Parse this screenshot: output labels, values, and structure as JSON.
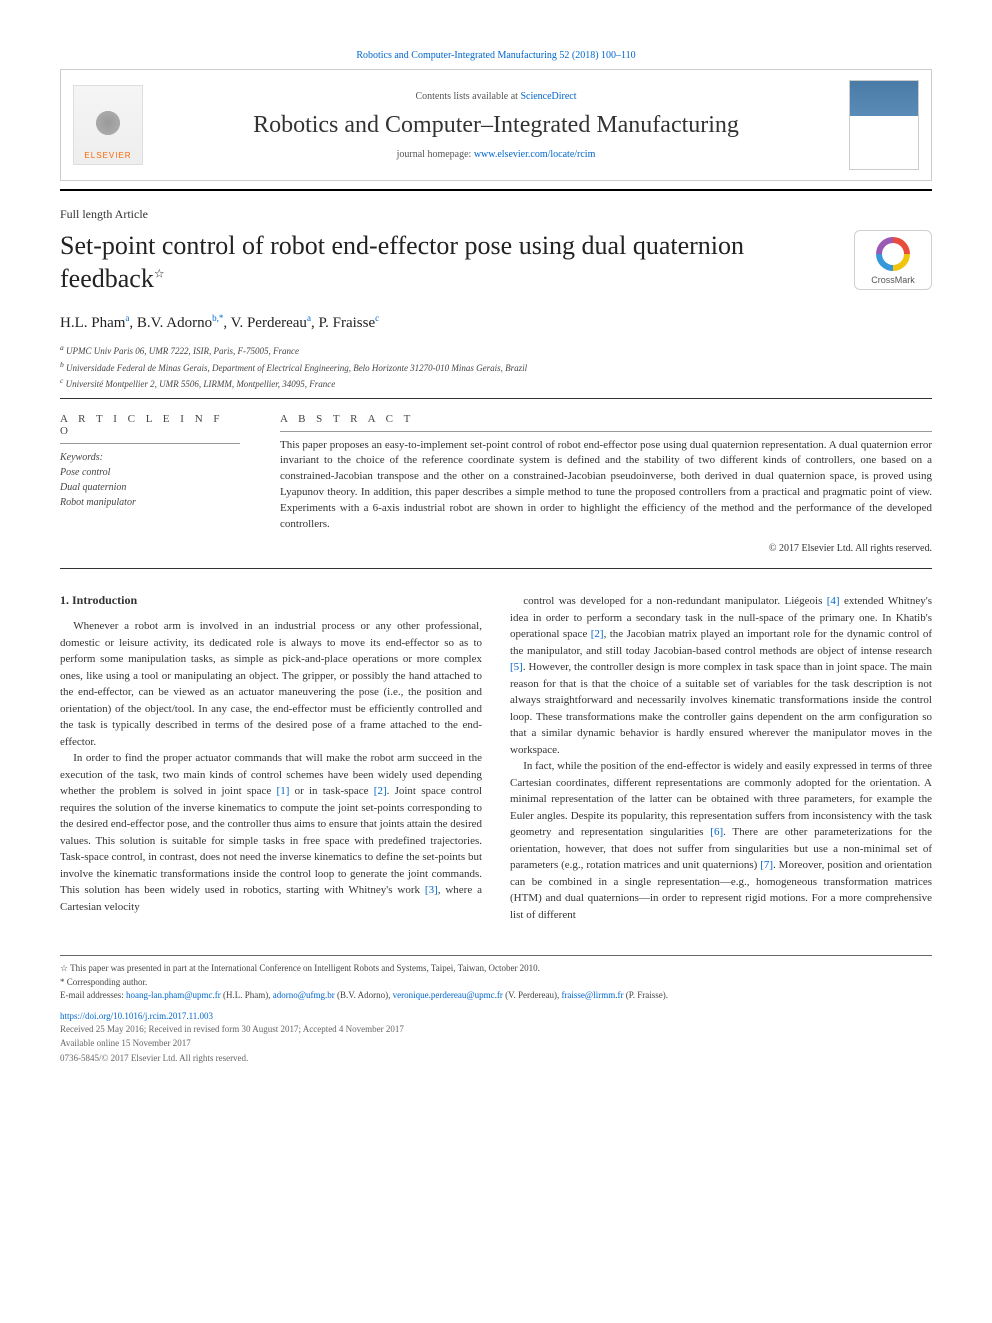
{
  "top_link": "Robotics and Computer-Integrated Manufacturing 52 (2018) 100–110",
  "header": {
    "contents_prefix": "Contents lists available at ",
    "contents_link": "ScienceDirect",
    "journal_name": "Robotics and Computer–Integrated Manufacturing",
    "homepage_prefix": "journal homepage: ",
    "homepage_url": "www.elsevier.com/locate/rcim",
    "elsevier_brand": "ELSEVIER",
    "crossmark_label": "CrossMark"
  },
  "article_type": "Full length Article",
  "title": "Set-point control of robot end-effector pose using dual quaternion feedback",
  "title_star": "☆",
  "authors_html": "H.L. Pham",
  "authors": [
    {
      "name": "H.L. Pham",
      "sup": "a"
    },
    {
      "name": "B.V. Adorno",
      "sup": "b,*"
    },
    {
      "name": "V. Perdereau",
      "sup": "a"
    },
    {
      "name": "P. Fraisse",
      "sup": "c"
    }
  ],
  "affiliations": [
    "UPMC Univ Paris 06, UMR 7222, ISIR, Paris, F-75005, France",
    "Universidade Federal de Minas Gerais, Department of Electrical Engineering, Belo Horizonte 31270-010 Minas Gerais, Brazil",
    "Université Montpellier 2, UMR 5506, LIRMM, Montpellier, 34095, France"
  ],
  "affil_markers": [
    "a",
    "b",
    "c"
  ],
  "info_heads": {
    "left": "A R T I C L E   I N F O",
    "right": "A B S T R A C T"
  },
  "keywords_label": "Keywords:",
  "keywords": [
    "Pose control",
    "Dual quaternion",
    "Robot manipulator"
  ],
  "abstract": "This paper proposes an easy-to-implement set-point control of robot end-effector pose using dual quaternion representation. A dual quaternion error invariant to the choice of the reference coordinate system is defined and the stability of two different kinds of controllers, one based on a constrained-Jacobian transpose and the other on a constrained-Jacobian pseudoinverse, both derived in dual quaternion space, is proved using Lyapunov theory. In addition, this paper describes a simple method to tune the proposed controllers from a practical and pragmatic point of view. Experiments with a 6-axis industrial robot are shown in order to highlight the efficiency of the method and the performance of the developed controllers.",
  "copyright": "© 2017 Elsevier Ltd. All rights reserved.",
  "section1_head": "1. Introduction",
  "paragraphs": [
    "Whenever a robot arm is involved in an industrial process or any other professional, domestic or leisure activity, its dedicated role is always to move its end-effector so as to perform some manipulation tasks, as simple as pick-and-place operations or more complex ones, like using a tool or manipulating an object. The gripper, or possibly the hand attached to the end-effector, can be viewed as an actuator maneuvering the pose (i.e., the position and orientation) of the object/tool. In any case, the end-effector must be efficiently controlled and the task is typically described in terms of the desired pose of a frame attached to the end-effector.",
    "In order to find the proper actuator commands that will make the robot arm succeed in the execution of the task, two main kinds of control schemes have been widely used depending whether the problem is solved in joint space [1] or in task-space [2]. Joint space control requires the solution of the inverse kinematics to compute the joint set-points corresponding to the desired end-effector pose, and the controller thus aims to ensure that joints attain the desired values. This solution is suitable for simple tasks in free space with predefined trajectories. Task-space control, in contrast, does not need the inverse kinematics to define the set-points but involve the kinematic transformations inside the control loop to generate the joint commands. This solution has been widely used in robotics, starting with Whitney's work [3], where a Cartesian velocity",
    "control was developed for a non-redundant manipulator. Liégeois [4] extended Whitney's idea in order to perform a secondary task in the null-space of the primary one. In Khatib's operational space [2], the Jacobian matrix played an important role for the dynamic control of the manipulator, and still today Jacobian-based control methods are object of intense research [5]. However, the controller design is more complex in task space than in joint space. The main reason for that is that the choice of a suitable set of variables for the task description is not always straightforward and necessarily involves kinematic transformations inside the control loop. These transformations make the controller gains dependent on the arm configuration so that a similar dynamic behavior is hardly ensured wherever the manipulator moves in the workspace.",
    "In fact, while the position of the end-effector is widely and easily expressed in terms of three Cartesian coordinates, different representations are commonly adopted for the orientation. A minimal representation of the latter can be obtained with three parameters, for example the Euler angles. Despite its popularity, this representation suffers from inconsistency with the task geometry and representation singularities [6]. There are other parameterizations for the orientation, however, that does not suffer from singularities but use a non-minimal set of parameters (e.g., rotation matrices and unit quaternions) [7]. Moreover, position and orientation can be combined in a single representation—e.g., homogeneous transformation matrices (HTM) and dual quaternions—in order to represent rigid motions. For a more comprehensive list of different"
  ],
  "ref_markers": {
    "r1": "[1]",
    "r2": "[2]",
    "r3": "[3]",
    "r4": "[4]",
    "r5": "[5]",
    "r6": "[6]",
    "r7": "[7]"
  },
  "footnotes": {
    "star": "☆ This paper was presented in part at the International Conference on Intelligent Robots and Systems, Taipei, Taiwan, October 2010.",
    "corr": "* Corresponding author.",
    "email_label": "E-mail addresses: ",
    "emails": [
      {
        "addr": "hoang-lan.pham@upmc.fr",
        "who": "(H.L. Pham)"
      },
      {
        "addr": "adorno@ufmg.br",
        "who": "(B.V. Adorno)"
      },
      {
        "addr": "veronique.perdereau@upmc.fr",
        "who": "(V. Perdereau)"
      },
      {
        "addr": "fraisse@lirmm.fr",
        "who": "(P. Fraisse)"
      }
    ]
  },
  "doi": "https://doi.org/10.1016/j.rcim.2017.11.003",
  "pubinfo": [
    "Received 25 May 2016; Received in revised form 30 August 2017; Accepted 4 November 2017",
    "Available online 15 November 2017",
    "0736-5845/© 2017 Elsevier Ltd. All rights reserved."
  ],
  "colors": {
    "link": "#0066cc",
    "text": "#333333",
    "rule": "#000000",
    "elsevier_orange": "#ff6600"
  },
  "typography": {
    "title_fontsize_pt": 20,
    "journal_fontsize_pt": 18,
    "body_fontsize_pt": 8.5,
    "abstract_fontsize_pt": 8.5,
    "footnote_fontsize_pt": 7
  }
}
